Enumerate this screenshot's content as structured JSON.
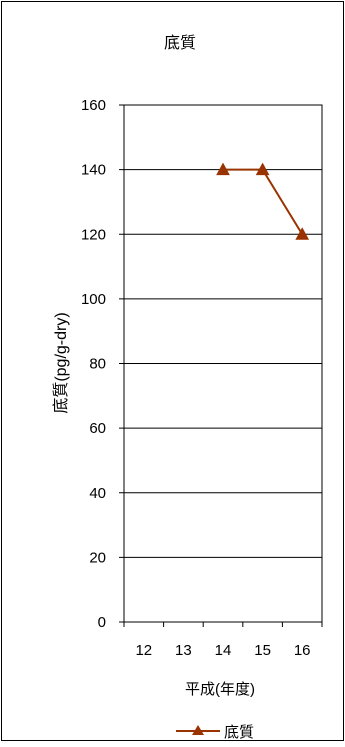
{
  "chart_data": {
    "type": "line",
    "title": "底質",
    "xlabel": "平成(年度)",
    "ylabel": "底質(pg/g-dry)",
    "categories": [
      "12",
      "13",
      "14",
      "15",
      "16"
    ],
    "series": [
      {
        "name": "底質",
        "values": [
          null,
          null,
          140,
          140,
          120
        ],
        "color": "#993300",
        "marker": "triangle"
      }
    ],
    "ylim": [
      0,
      160
    ],
    "yticks": [
      0,
      20,
      40,
      60,
      80,
      100,
      120,
      140,
      160
    ],
    "grid": true,
    "legend_position": "bottom"
  }
}
